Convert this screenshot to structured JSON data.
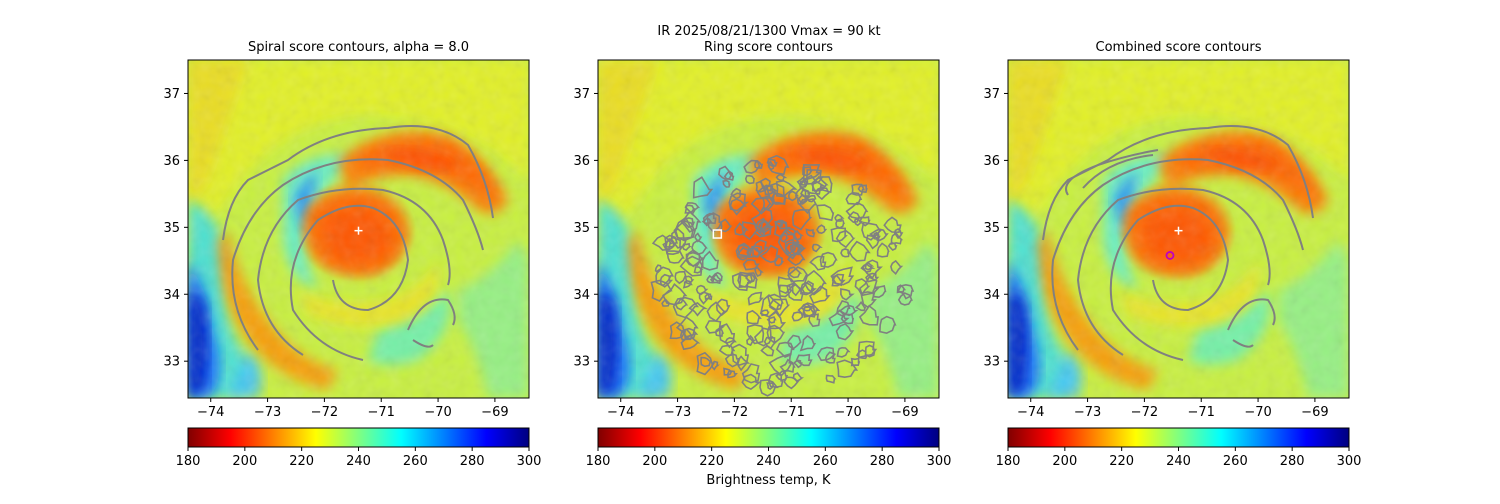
{
  "suptitle": {
    "line1": "IR  2025/08/21/1300    Vmax = 90 kt"
  },
  "colorbar": {
    "label": "Brightness temp, K",
    "range": [
      180,
      300
    ],
    "ticks": [
      "180",
      "200",
      "220",
      "240",
      "260",
      "280",
      "300"
    ],
    "colormap": "jet_r",
    "colors": [
      "#800000",
      "#ff0000",
      "#ff8000",
      "#ffff00",
      "#80ff80",
      "#00ffff",
      "#0080ff",
      "#0000ff",
      "#000080"
    ]
  },
  "chart_data": [
    {
      "type": "heatmap",
      "title": "Spiral score contours, alpha =  8.0",
      "xlim": [
        -74.4,
        -68.4
      ],
      "ylim": [
        32.45,
        37.5
      ],
      "xticks": [
        "−74",
        "−73",
        "−72",
        "−71",
        "−70",
        "−69"
      ],
      "yticks": [
        "33",
        "34",
        "35",
        "36",
        "37"
      ],
      "marker": {
        "kind": "plus",
        "lon": -71.4,
        "lat": 34.95,
        "color": "#ffffff"
      },
      "contour_color": "#808080"
    },
    {
      "type": "heatmap",
      "title": "Ring score contours",
      "xlim": [
        -74.4,
        -68.4
      ],
      "ylim": [
        32.45,
        37.5
      ],
      "xticks": [
        "−74",
        "−73",
        "−72",
        "−71",
        "−70",
        "−69"
      ],
      "yticks": [
        "33",
        "34",
        "35",
        "36",
        "37"
      ],
      "marker": {
        "kind": "square",
        "lon": -72.3,
        "lat": 34.9,
        "color": "#ffffff"
      },
      "contour_color": "#808080"
    },
    {
      "type": "heatmap",
      "title": "Combined score contours",
      "xlim": [
        -74.4,
        -68.4
      ],
      "ylim": [
        32.45,
        37.5
      ],
      "xticks": [
        "−74",
        "−73",
        "−72",
        "−71",
        "−70",
        "−69"
      ],
      "yticks": [
        "33",
        "34",
        "35",
        "36",
        "37"
      ],
      "marker": {
        "kind": "plus",
        "lon": -71.4,
        "lat": 34.95,
        "color": "#ffffff"
      },
      "marker2": {
        "kind": "circle",
        "lon": -71.55,
        "lat": 34.58,
        "color": "#c000c0"
      },
      "contour_color": "#808080"
    }
  ]
}
